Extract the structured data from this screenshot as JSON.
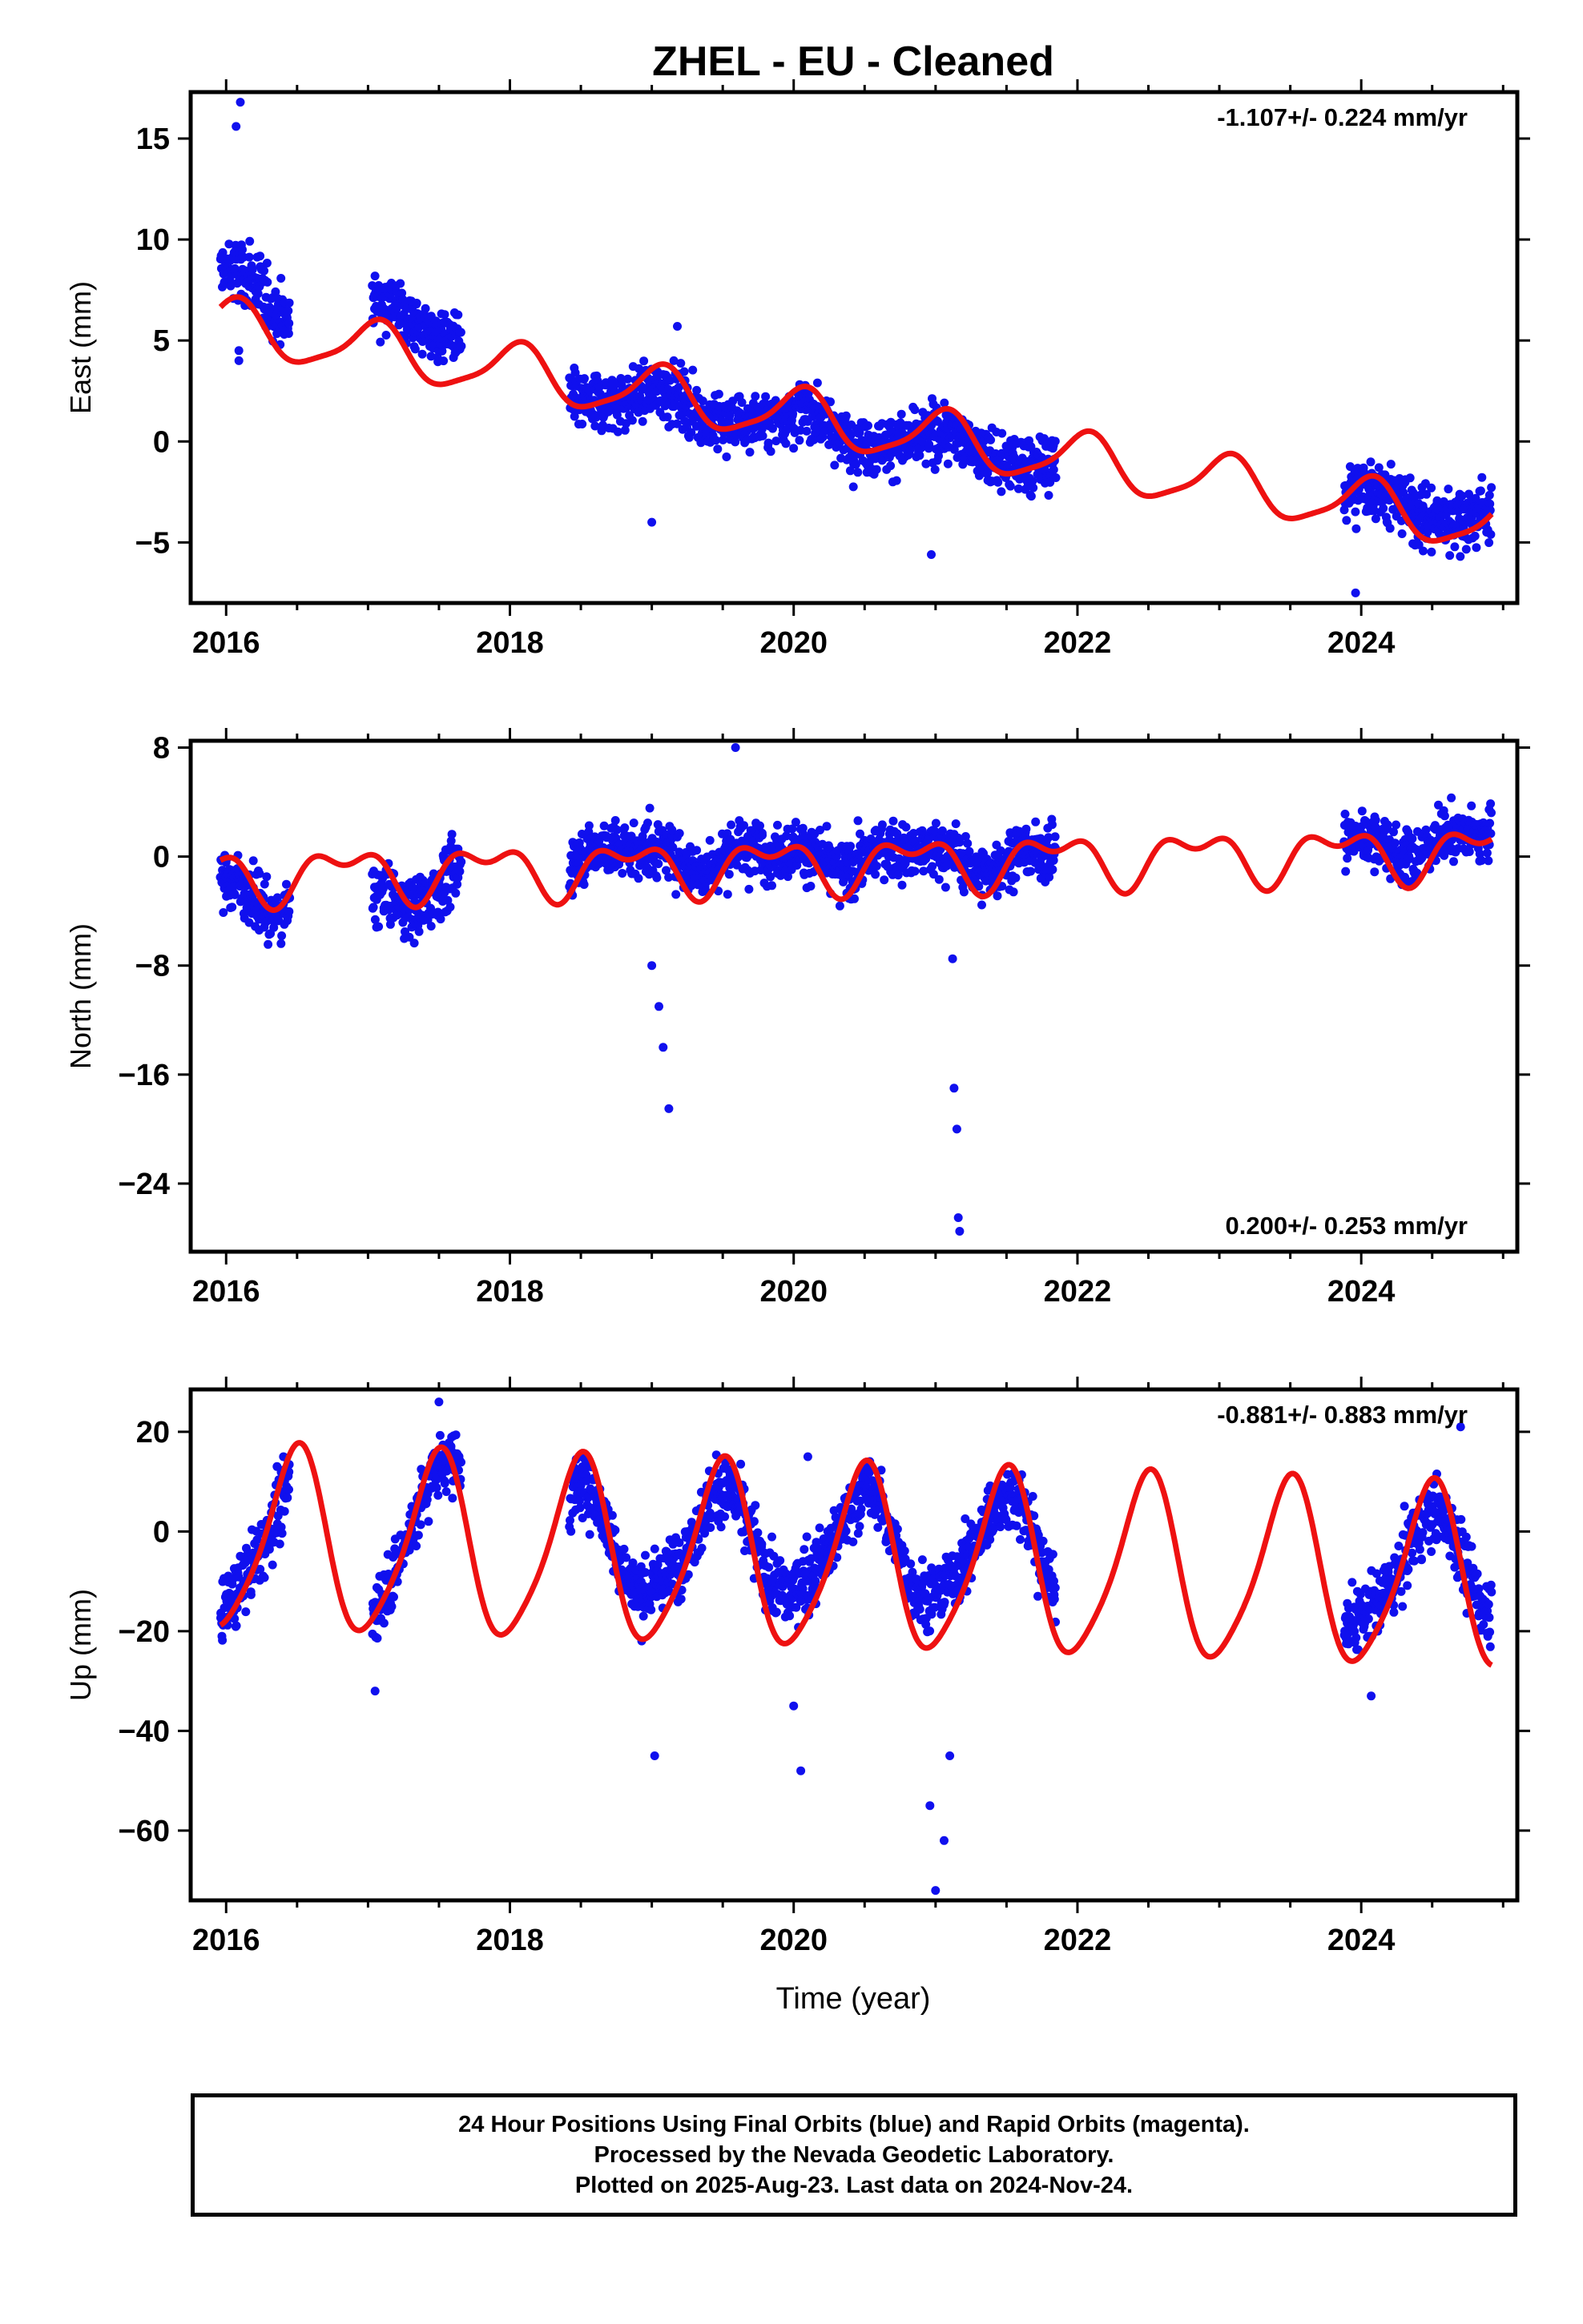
{
  "title": "ZHEL  - EU - Cleaned",
  "xlabel": "Time (year)",
  "footer": {
    "line1": "24 Hour Positions Using Final Orbits (blue) and Rapid Orbits (magenta).",
    "line2": "Processed by the Nevada Geodetic Laboratory.",
    "line3": "Plotted on 2025-Aug-23. Last data on 2024-Nov-24."
  },
  "colors": {
    "data": "#1010ee",
    "model": "#ee1111",
    "frame": "#000000"
  },
  "chart_data": [
    {
      "type": "scatter",
      "component": "east",
      "ylabel": "East (mm)",
      "rate": "-1.107+/- 0.224 mm/yr",
      "rate_position": "top-right",
      "xlim": [
        2015.75,
        2025.1
      ],
      "ylim": [
        -8,
        17.3
      ],
      "xticks": [
        2016,
        2018,
        2020,
        2022,
        2024
      ],
      "xtick_labels": [
        "2016",
        "2018",
        "2020",
        "2022",
        "2024"
      ],
      "yticks": [
        -5,
        0,
        5,
        10,
        15
      ],
      "ytick_labels": [
        "−5",
        "0",
        "5",
        "10",
        "15"
      ],
      "model": {
        "trend_mm_per_yr": -1.107,
        "offset_2016": 5.7,
        "annual_amp": 1.3,
        "annual_phase": 1.2,
        "semi_amp": 0.3,
        "semi_phase": 0.0
      },
      "segments": [
        {
          "x": [
            2015.96,
            2016.45
          ],
          "y": [
            10.0,
            7.5
          ],
          "noise": 1.3
        },
        {
          "x": [
            2017.03,
            2017.66
          ],
          "y": [
            8.0,
            7.0
          ],
          "noise": 1.1
        },
        {
          "x": [
            2018.42,
            2021.85
          ],
          "y": [
            2.2,
            -1.2
          ],
          "noise": 1.1
        },
        {
          "x": [
            2023.88,
            2024.92
          ],
          "y": [
            -2.4,
            -3.2
          ],
          "noise": 1.2
        }
      ],
      "outliers": [
        [
          2016.07,
          15.6
        ],
        [
          2016.1,
          16.8
        ],
        [
          2016.09,
          4.0
        ],
        [
          2016.09,
          4.5
        ],
        [
          2019.0,
          -4.0
        ],
        [
          2019.18,
          5.7
        ],
        [
          2020.97,
          -5.6
        ],
        [
          2023.96,
          -7.5
        ]
      ]
    },
    {
      "type": "scatter",
      "component": "north",
      "ylabel": "North (mm)",
      "rate": "0.200+/- 0.253 mm/yr",
      "rate_position": "bottom-right",
      "xlim": [
        2015.75,
        2025.1
      ],
      "ylim": [
        -29,
        8.5
      ],
      "xticks": [
        2016,
        2018,
        2020,
        2022,
        2024
      ],
      "xtick_labels": [
        "2016",
        "2018",
        "2020",
        "2022",
        "2024"
      ],
      "yticks": [
        -24,
        -16,
        -8,
        0,
        8
      ],
      "ytick_labels": [
        "−24",
        "−16",
        "−8",
        "0",
        "8"
      ],
      "model": {
        "trend_mm_per_yr": 0.2,
        "offset_2016": -1.4,
        "annual_amp": 1.6,
        "annual_phase": 2.6,
        "semi_amp": 1.0,
        "semi_phase": 0.5
      },
      "segments": [
        {
          "x": [
            2015.96,
            2016.45
          ],
          "y": [
            -2.5,
            -5.0
          ],
          "noise": 1.6
        },
        {
          "x": [
            2017.03,
            2017.66
          ],
          "y": [
            -5.0,
            -2.0
          ],
          "noise": 1.8
        },
        {
          "x": [
            2018.42,
            2021.85
          ],
          "y": [
            1.0,
            0.0
          ],
          "noise": 1.6
        },
        {
          "x": [
            2023.88,
            2024.92
          ],
          "y": [
            1.5,
            2.0
          ],
          "noise": 1.5
        }
      ],
      "outliers": [
        [
          2019.0,
          -8.0
        ],
        [
          2019.05,
          -11.0
        ],
        [
          2019.08,
          -14.0
        ],
        [
          2019.12,
          -18.5
        ],
        [
          2021.13,
          -17.0
        ],
        [
          2021.15,
          -20.0
        ],
        [
          2021.16,
          -26.5
        ],
        [
          2021.17,
          -27.5
        ],
        [
          2019.59,
          8.0
        ],
        [
          2021.12,
          -7.5
        ]
      ]
    },
    {
      "type": "scatter",
      "component": "up",
      "ylabel": "Up (mm)",
      "rate": "-0.881+/- 0.883 mm/yr",
      "rate_position": "top-right",
      "xlim": [
        2015.75,
        2025.1
      ],
      "ylim": [
        -74,
        28.5
      ],
      "xticks": [
        2016,
        2018,
        2020,
        2022,
        2024
      ],
      "xtick_labels": [
        "2016",
        "2018",
        "2020",
        "2022",
        "2024"
      ],
      "yticks": [
        -60,
        -40,
        -20,
        0,
        20
      ],
      "ytick_labels": [
        "−60",
        "−40",
        "−20",
        "0",
        "20"
      ],
      "model": {
        "trend_mm_per_yr": -0.881,
        "offset_2016": -2.0,
        "annual_amp": 18.0,
        "annual_phase": -1.5,
        "semi_amp": 3.0,
        "semi_phase": 0.8
      },
      "segments": [
        {
          "x": [
            2015.96,
            2016.45
          ],
          "y": [
            -12.0,
            2.0
          ],
          "noise": 5.0
        },
        {
          "x": [
            2017.03,
            2017.66
          ],
          "y": [
            -15.0,
            18.0
          ],
          "noise": 5.0
        },
        {
          "x": [
            2018.42,
            2021.85
          ],
          "y": [
            0.0,
            0.0
          ],
          "noise": 5.0
        },
        {
          "x": [
            2023.88,
            2024.92
          ],
          "y": [
            -10.0,
            -2.0
          ],
          "noise": 5.0
        }
      ],
      "outliers": [
        [
          2017.05,
          -32.0
        ],
        [
          2019.02,
          -45.0
        ],
        [
          2020.05,
          -48.0
        ],
        [
          2020.0,
          -35.0
        ],
        [
          2020.96,
          -55.0
        ],
        [
          2021.0,
          -72.0
        ],
        [
          2021.06,
          -62.0
        ],
        [
          2021.1,
          -45.0
        ],
        [
          2017.5,
          26.0
        ],
        [
          2020.1,
          15.0
        ],
        [
          2024.07,
          -33.0
        ],
        [
          2024.7,
          21.0
        ]
      ]
    }
  ]
}
